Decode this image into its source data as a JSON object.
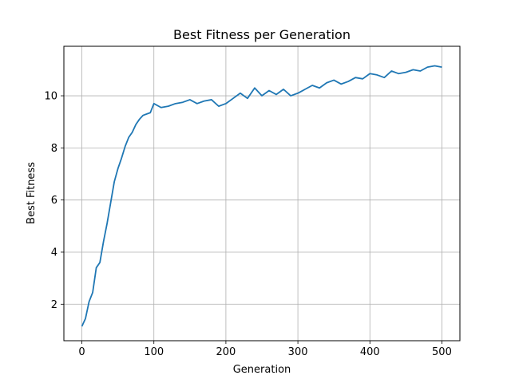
{
  "chart_data": {
    "type": "line",
    "title": "Best Fitness per Generation",
    "xlabel": "Generation",
    "ylabel": "Best Fitness",
    "xlim": [
      -25,
      525
    ],
    "ylim": [
      0.6,
      11.9
    ],
    "grid": true,
    "x_ticks": [
      0,
      100,
      200,
      300,
      400,
      500
    ],
    "y_ticks": [
      2,
      4,
      6,
      8,
      10
    ],
    "x_tick_labels": [
      "0",
      "100",
      "200",
      "300",
      "400",
      "500"
    ],
    "y_tick_labels": [
      "2",
      "4",
      "6",
      "8",
      "10"
    ],
    "series": [
      {
        "color": "#1f77b4",
        "x": [
          0,
          5,
          10,
          15,
          20,
          25,
          30,
          35,
          40,
          45,
          50,
          55,
          60,
          65,
          70,
          75,
          80,
          85,
          90,
          95,
          100,
          110,
          120,
          130,
          140,
          150,
          160,
          170,
          180,
          190,
          200,
          210,
          220,
          230,
          240,
          250,
          260,
          270,
          280,
          290,
          300,
          310,
          320,
          330,
          340,
          350,
          360,
          370,
          380,
          390,
          400,
          410,
          420,
          430,
          440,
          450,
          460,
          470,
          480,
          490,
          500
        ],
        "y": [
          1.15,
          1.45,
          2.1,
          2.45,
          3.4,
          3.6,
          4.4,
          5.1,
          5.9,
          6.7,
          7.2,
          7.6,
          8.05,
          8.4,
          8.6,
          8.9,
          9.1,
          9.25,
          9.3,
          9.35,
          9.7,
          9.55,
          9.6,
          9.7,
          9.75,
          9.85,
          9.7,
          9.8,
          9.85,
          9.6,
          9.7,
          9.9,
          10.1,
          9.9,
          10.3,
          10.0,
          10.2,
          10.05,
          10.25,
          10.0,
          10.1,
          10.25,
          10.4,
          10.3,
          10.5,
          10.6,
          10.45,
          10.55,
          10.7,
          10.65,
          10.85,
          10.8,
          10.7,
          10.95,
          10.85,
          10.9,
          11.0,
          10.95,
          11.1,
          11.15,
          11.1
        ]
      }
    ]
  }
}
